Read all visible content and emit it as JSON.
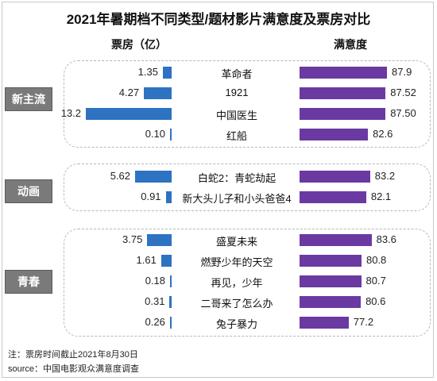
{
  "title": "2021年暑期档不同类型/题材影片满意度及票房对比",
  "col_left": "票房（亿）",
  "col_right": "满意度",
  "footer_note": "注：票房时间截止2021年8月30日",
  "footer_source": "source：中国电影观众满意度调查",
  "colors": {
    "box_office": "#2e72c2",
    "satisfaction": "#6a3aa2",
    "tag": "#7a7a7a"
  },
  "chart_data": {
    "type": "bar",
    "title": "2021年暑期档不同类型/题材影片满意度及票房对比",
    "series_labels": [
      "票房（亿）",
      "满意度"
    ],
    "groups": [
      {
        "name": "新主流",
        "films": [
          {
            "title": "革命者",
            "box_office_label": "1.35",
            "box_office": 1.35,
            "satisfaction_label": "87.9",
            "satisfaction": 87.9
          },
          {
            "title": "1921",
            "box_office_label": "4.27",
            "box_office": 4.27,
            "satisfaction_label": "87.52",
            "satisfaction": 87.52
          },
          {
            "title": "中国医生",
            "box_office_label": "13.2",
            "box_office": 13.2,
            "satisfaction_label": "87.50",
            "satisfaction": 87.5
          },
          {
            "title": "红船",
            "box_office_label": "0.10",
            "box_office": 0.1,
            "satisfaction_label": "82.6",
            "satisfaction": 82.6
          }
        ]
      },
      {
        "name": "动画",
        "films": [
          {
            "title": "白蛇2：青蛇劫起",
            "box_office_label": "5.62",
            "box_office": 5.62,
            "satisfaction_label": "83.2",
            "satisfaction": 83.2
          },
          {
            "title": "新大头儿子和小头爸爸4",
            "box_office_label": "0.91",
            "box_office": 0.91,
            "satisfaction_label": "82.1",
            "satisfaction": 82.1
          }
        ]
      },
      {
        "name": "青春",
        "films": [
          {
            "title": "盛夏未来",
            "box_office_label": "3.75",
            "box_office": 3.75,
            "satisfaction_label": "83.6",
            "satisfaction": 83.6
          },
          {
            "title": "燃野少年的天空",
            "box_office_label": "1.61",
            "box_office": 1.61,
            "satisfaction_label": "80.8",
            "satisfaction": 80.8
          },
          {
            "title": "再见，少年",
            "box_office_label": "0.18",
            "box_office": 0.18,
            "satisfaction_label": "80.7",
            "satisfaction": 80.7
          },
          {
            "title": "二哥来了怎么办",
            "box_office_label": "0.31",
            "box_office": 0.31,
            "satisfaction_label": "80.6",
            "satisfaction": 80.6
          },
          {
            "title": "兔子暴力",
            "box_office_label": "0.26",
            "box_office": 0.26,
            "satisfaction_label": "77.2",
            "satisfaction": 77.2
          }
        ]
      }
    ]
  }
}
